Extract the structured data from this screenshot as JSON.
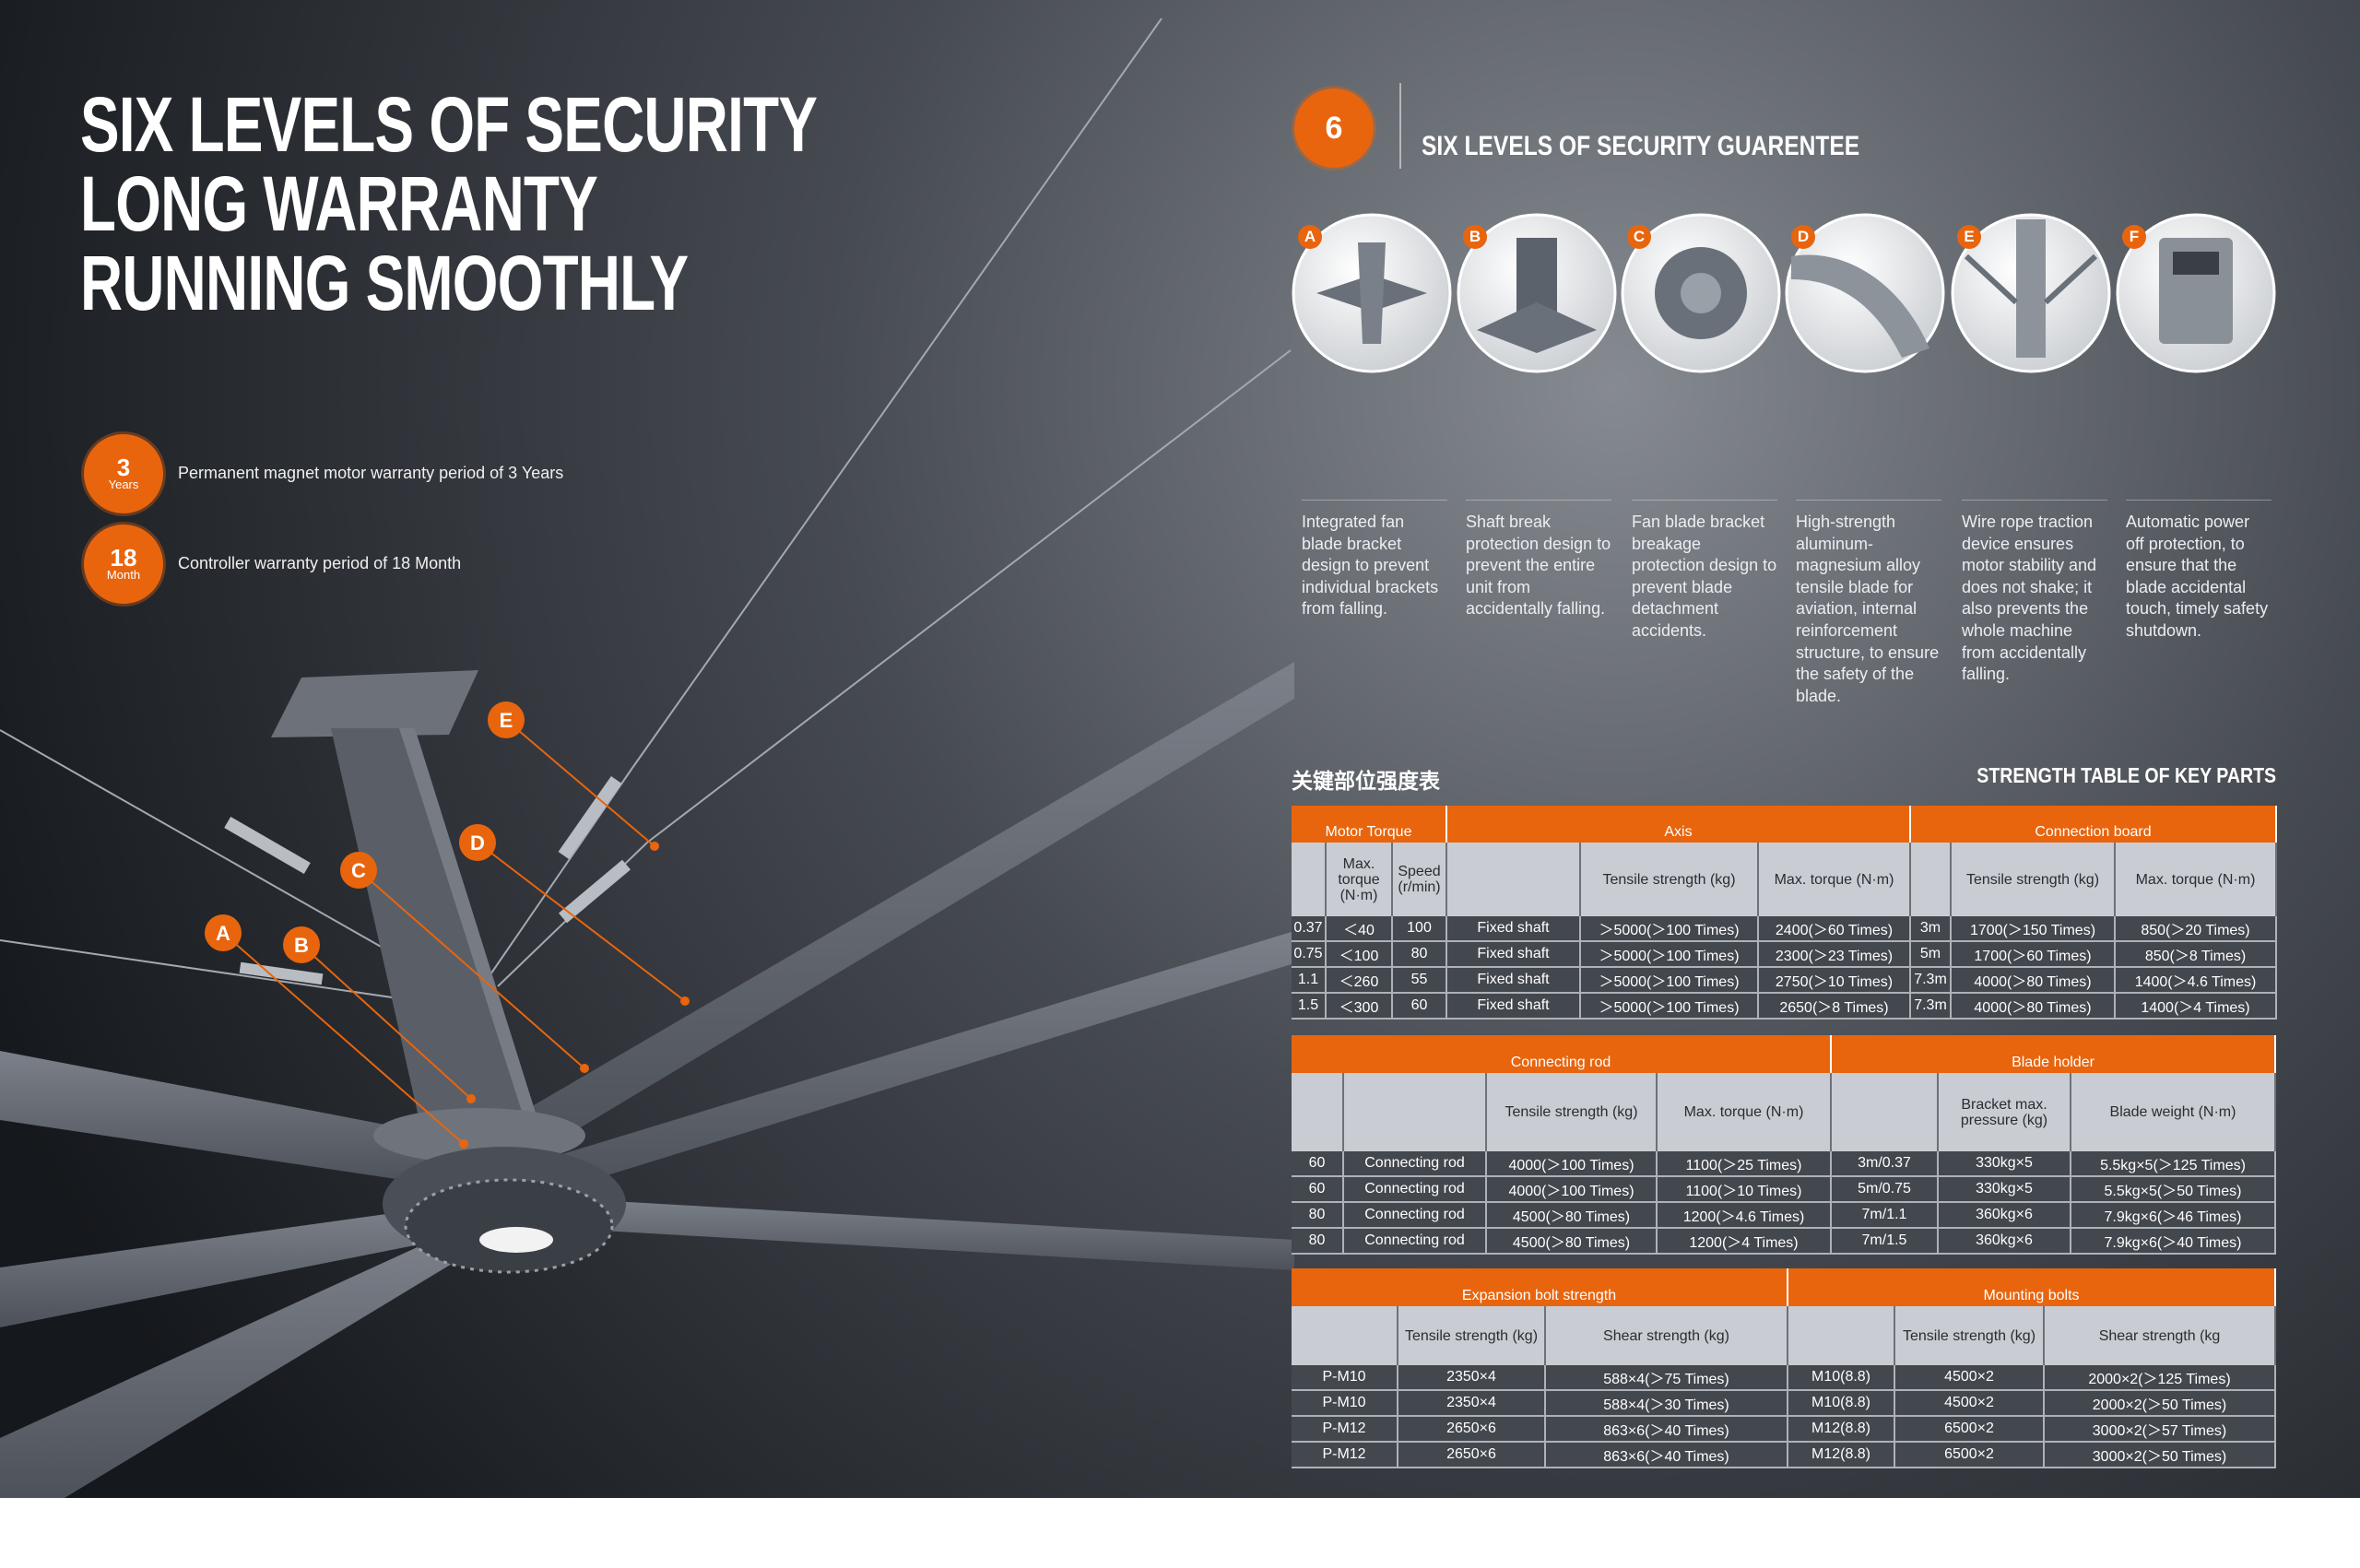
{
  "headline": [
    "SIX LEVELS OF SECURITY",
    "LONG WARRANTY",
    "RUNNING SMOOTHLY"
  ],
  "warranties": [
    {
      "badge_number": "3",
      "badge_unit": "Years",
      "text": "Permanent magnet motor warranty period of 3 Years"
    },
    {
      "badge_number": "18",
      "badge_unit": "Month",
      "text": "Controller warranty period of 18 Month"
    }
  ],
  "section": {
    "badge": "6",
    "title": "SIX LEVELS OF SECURITY GUARENTEE"
  },
  "features": [
    {
      "letter": "A",
      "text": "Integrated fan blade bracket design to prevent individual brackets from falling."
    },
    {
      "letter": "B",
      "text": "Shaft break protection design to prevent the entire unit from accidentally falling."
    },
    {
      "letter": "C",
      "text": "Fan blade bracket breakage protection design to prevent blade detachment accidents."
    },
    {
      "letter": "D",
      "text": "High-strength aluminum-magnesium alloy tensile blade for aviation, internal reinforcement structure, to ensure the safety of the blade."
    },
    {
      "letter": "E",
      "text": "Wire rope traction device ensures motor stability and does not shake; it also prevents the whole machine from accidentally falling."
    },
    {
      "letter": "F",
      "text": "Automatic power off protection, to ensure that the blade accidental touch, timely safety shutdown."
    }
  ],
  "strength_table": {
    "title_cn": "关键部位强度表",
    "title_en": "STRENGTH TABLE OF KEY PARTS",
    "tables": [
      {
        "groups": [
          "Motor Torque",
          "Axis",
          "Connection board"
        ],
        "headers": [
          "Max. torque (N·m)",
          "Speed (r/min)",
          "Tensile strength (kg)",
          "Max. torque (N·m)",
          "Tensile strength (kg)",
          "Max. torque (N·m)"
        ],
        "rows": [
          [
            "0.37",
            "＜40",
            "100",
            "Fixed shaft",
            "＞5000(＞100 Times)",
            "2400(＞60 Times)",
            "3m",
            "1700(＞150 Times)",
            "850(＞20 Times)"
          ],
          [
            "0.75",
            "＜100",
            "80",
            "Fixed shaft",
            "＞5000(＞100 Times)",
            "2300(＞23 Times)",
            "5m",
            "1700(＞60 Times)",
            "850(＞8 Times)"
          ],
          [
            "1.1",
            "＜260",
            "55",
            "Fixed shaft",
            "＞5000(＞100 Times)",
            "2750(＞10 Times)",
            "7.3m",
            "4000(＞80 Times)",
            "1400(＞4.6 Times)"
          ],
          [
            "1.5",
            "＜300",
            "60",
            "Fixed shaft",
            "＞5000(＞100 Times)",
            "2650(＞8 Times)",
            "7.3m",
            "4000(＞80 Times)",
            "1400(＞4 Times)"
          ]
        ]
      },
      {
        "groups": [
          "Connecting rod",
          "Blade holder"
        ],
        "headers": [
          "Tensile strength (kg)",
          "Max. torque (N·m)",
          "Bracket max. pressure (kg)",
          "Blade weight (N·m)"
        ],
        "rows": [
          [
            "60",
            "Connecting rod",
            "4000(＞100 Times)",
            "1100(＞25 Times)",
            "3m/0.37",
            "330kg×5",
            "5.5kg×5(＞125 Times)"
          ],
          [
            "60",
            "Connecting rod",
            "4000(＞100 Times)",
            "1100(＞10 Times)",
            "5m/0.75",
            "330kg×5",
            "5.5kg×5(＞50 Times)"
          ],
          [
            "80",
            "Connecting rod",
            "4500(＞80 Times)",
            "1200(＞4.6 Times)",
            "7m/1.1",
            "360kg×6",
            "7.9kg×6(＞46 Times)"
          ],
          [
            "80",
            "Connecting rod",
            "4500(＞80 Times)",
            "1200(＞4 Times)",
            "7m/1.5",
            "360kg×6",
            "7.9kg×6(＞40 Times)"
          ]
        ]
      },
      {
        "groups": [
          "Expansion bolt strength",
          "Mounting bolts"
        ],
        "headers": [
          "Tensile strength (kg)",
          "Shear strength (kg)",
          "Tensile strength (kg)",
          "Shear strength (kg"
        ],
        "rows": [
          [
            "P-M10",
            "2350×4",
            "588×4(＞75 Times)",
            "M10(8.8)",
            "4500×2",
            "2000×2(＞125 Times)"
          ],
          [
            "P-M10",
            "2350×4",
            "588×4(＞30 Times)",
            "M10(8.8)",
            "4500×2",
            "2000×2(＞50 Times)"
          ],
          [
            "P-M12",
            "2650×6",
            "863×6(＞40 Times)",
            "M12(8.8)",
            "6500×2",
            "3000×2(＞57 Times)"
          ],
          [
            "P-M12",
            "2650×6",
            "863×6(＞40 Times)",
            "M12(8.8)",
            "6500×2",
            "3000×2(＞50 Times)"
          ]
        ]
      }
    ]
  }
}
